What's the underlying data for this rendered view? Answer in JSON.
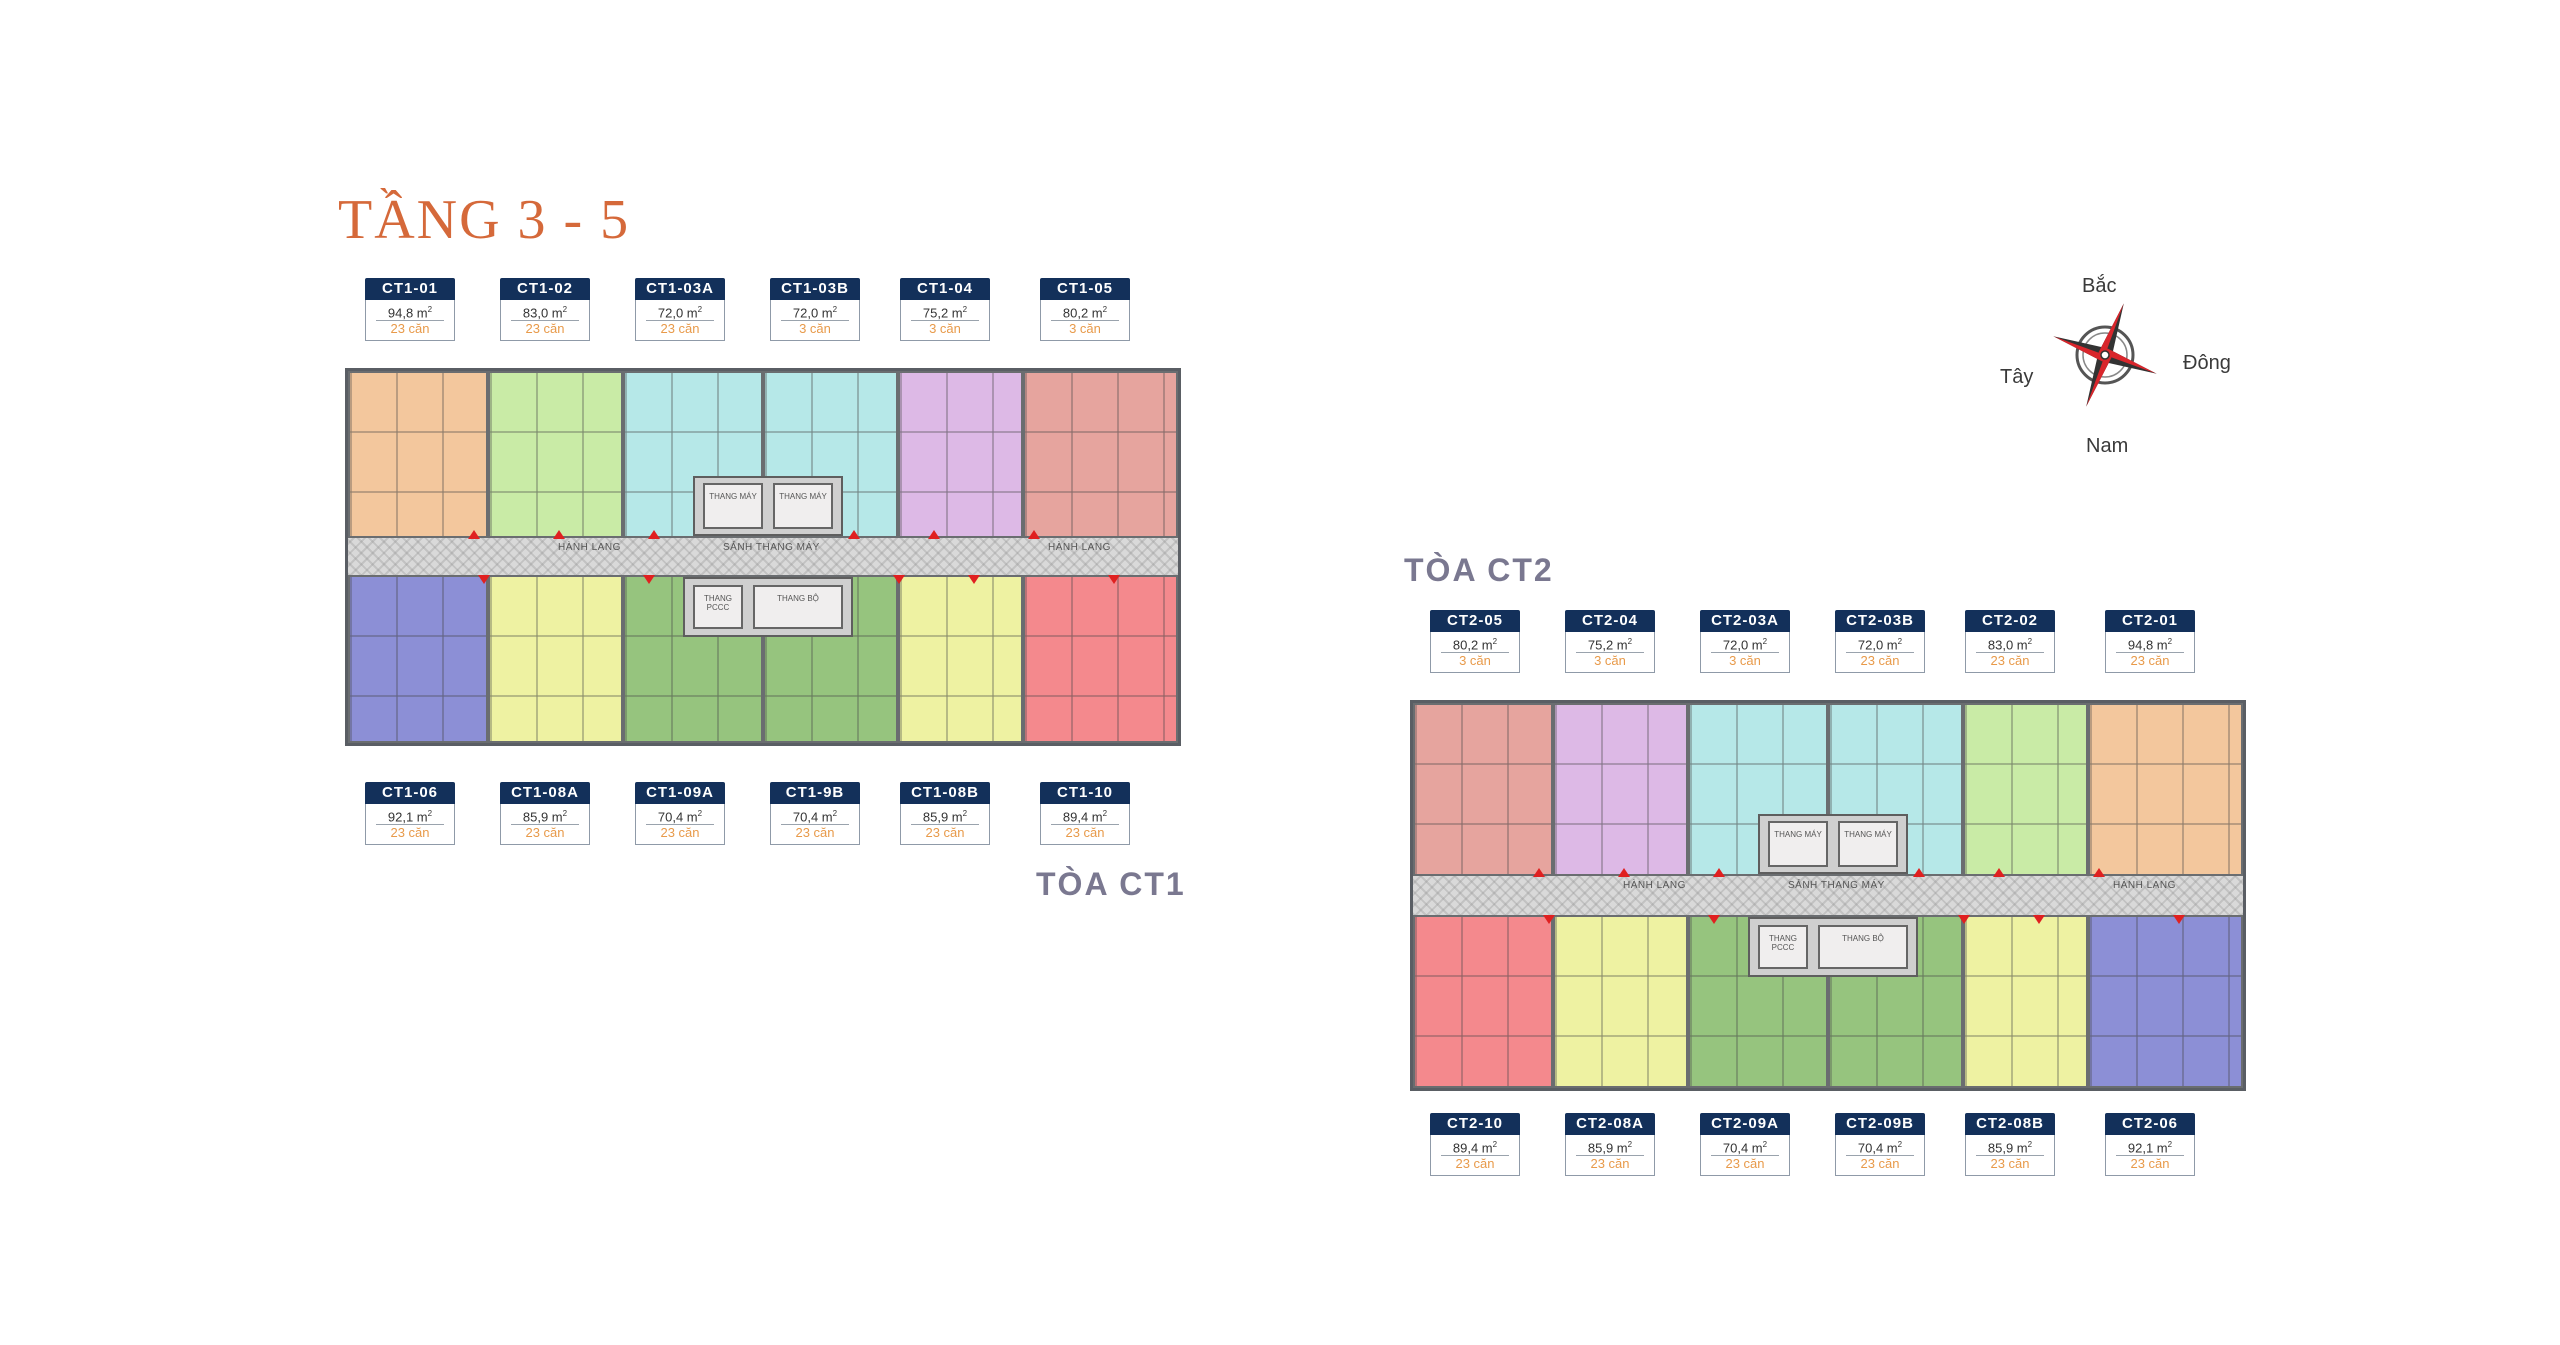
{
  "title": "TẦNG 3 - 5",
  "compass": {
    "north": "Bắc",
    "south": "Nam",
    "east": "Đông",
    "west": "Tây"
  },
  "ct1": {
    "name": "TÒA CT1",
    "top_units": [
      {
        "code": "CT1-01",
        "area": "94,8 m",
        "count": "23 căn",
        "color": "#f3c79d"
      },
      {
        "code": "CT1-02",
        "area": "83,0 m",
        "count": "23 căn",
        "color": "#c9eba6"
      },
      {
        "code": "CT1-03A",
        "area": "72,0 m",
        "count": "23 căn",
        "color": "#b6e8e8"
      },
      {
        "code": "CT1-03B",
        "area": "72,0 m",
        "count": "3 căn",
        "color": "#b6e8e8"
      },
      {
        "code": "CT1-04",
        "area": "75,2 m",
        "count": "3 căn",
        "color": "#ddb9e6"
      },
      {
        "code": "CT1-05",
        "area": "80,2 m",
        "count": "3 căn",
        "color": "#e6a49e"
      }
    ],
    "bottom_units": [
      {
        "code": "CT1-06",
        "area": "92,1 m",
        "count": "23 căn",
        "color": "#8c8fd6"
      },
      {
        "code": "CT1-08A",
        "area": "85,9 m",
        "count": "23 căn",
        "color": "#eef2a2"
      },
      {
        "code": "CT1-09A",
        "area": "70,4 m",
        "count": "23 căn",
        "color": "#96c47e"
      },
      {
        "code": "CT1-9B",
        "area": "70,4 m",
        "count": "23 căn",
        "color": "#96c47e"
      },
      {
        "code": "CT1-08B",
        "area": "85,9 m",
        "count": "23 căn",
        "color": "#eef2a2"
      },
      {
        "code": "CT1-10",
        "area": "89,4 m",
        "count": "23 căn",
        "color": "#f4898d"
      }
    ],
    "labels": {
      "corridor_left": "HÀNH LANG",
      "lobby": "SẢNH THANG MÁY",
      "corridor_right": "HÀNH LANG",
      "lift": "THANG MÁY",
      "stair": "THANG BỘ",
      "fire": "THANG PCCC"
    }
  },
  "ct2": {
    "name": "TÒA CT2",
    "top_units": [
      {
        "code": "CT2-05",
        "area": "80,2 m",
        "count": "3 căn",
        "color": "#e6a49e"
      },
      {
        "code": "CT2-04",
        "area": "75,2 m",
        "count": "3 căn",
        "color": "#ddb9e6"
      },
      {
        "code": "CT2-03A",
        "area": "72,0 m",
        "count": "3 căn",
        "color": "#b6e8e8"
      },
      {
        "code": "CT2-03B",
        "area": "72,0 m",
        "count": "23 căn",
        "color": "#b6e8e8"
      },
      {
        "code": "CT2-02",
        "area": "83,0 m",
        "count": "23 căn",
        "color": "#c9eba6"
      },
      {
        "code": "CT2-01",
        "area": "94,8 m",
        "count": "23 căn",
        "color": "#f3c79d"
      }
    ],
    "bottom_units": [
      {
        "code": "CT2-10",
        "area": "89,4 m",
        "count": "23 căn",
        "color": "#f4898d"
      },
      {
        "code": "CT2-08A",
        "area": "85,9 m",
        "count": "23 căn",
        "color": "#eef2a2"
      },
      {
        "code": "CT2-09A",
        "area": "70,4 m",
        "count": "23 căn",
        "color": "#96c47e"
      },
      {
        "code": "CT2-09B",
        "area": "70,4 m",
        "count": "23 căn",
        "color": "#96c47e"
      },
      {
        "code": "CT2-08B",
        "area": "85,9 m",
        "count": "23 căn",
        "color": "#eef2a2"
      },
      {
        "code": "CT2-06",
        "area": "92,1 m",
        "count": "23 căn",
        "color": "#8c8fd6"
      }
    ],
    "labels": {
      "corridor_left": "HÀNH LANG",
      "lobby": "SẢNH THANG MÁY",
      "corridor_right": "HÀNH LANG",
      "lift": "THANG MÁY",
      "stair": "THANG BỘ",
      "fire": "THANG PCCC"
    }
  }
}
